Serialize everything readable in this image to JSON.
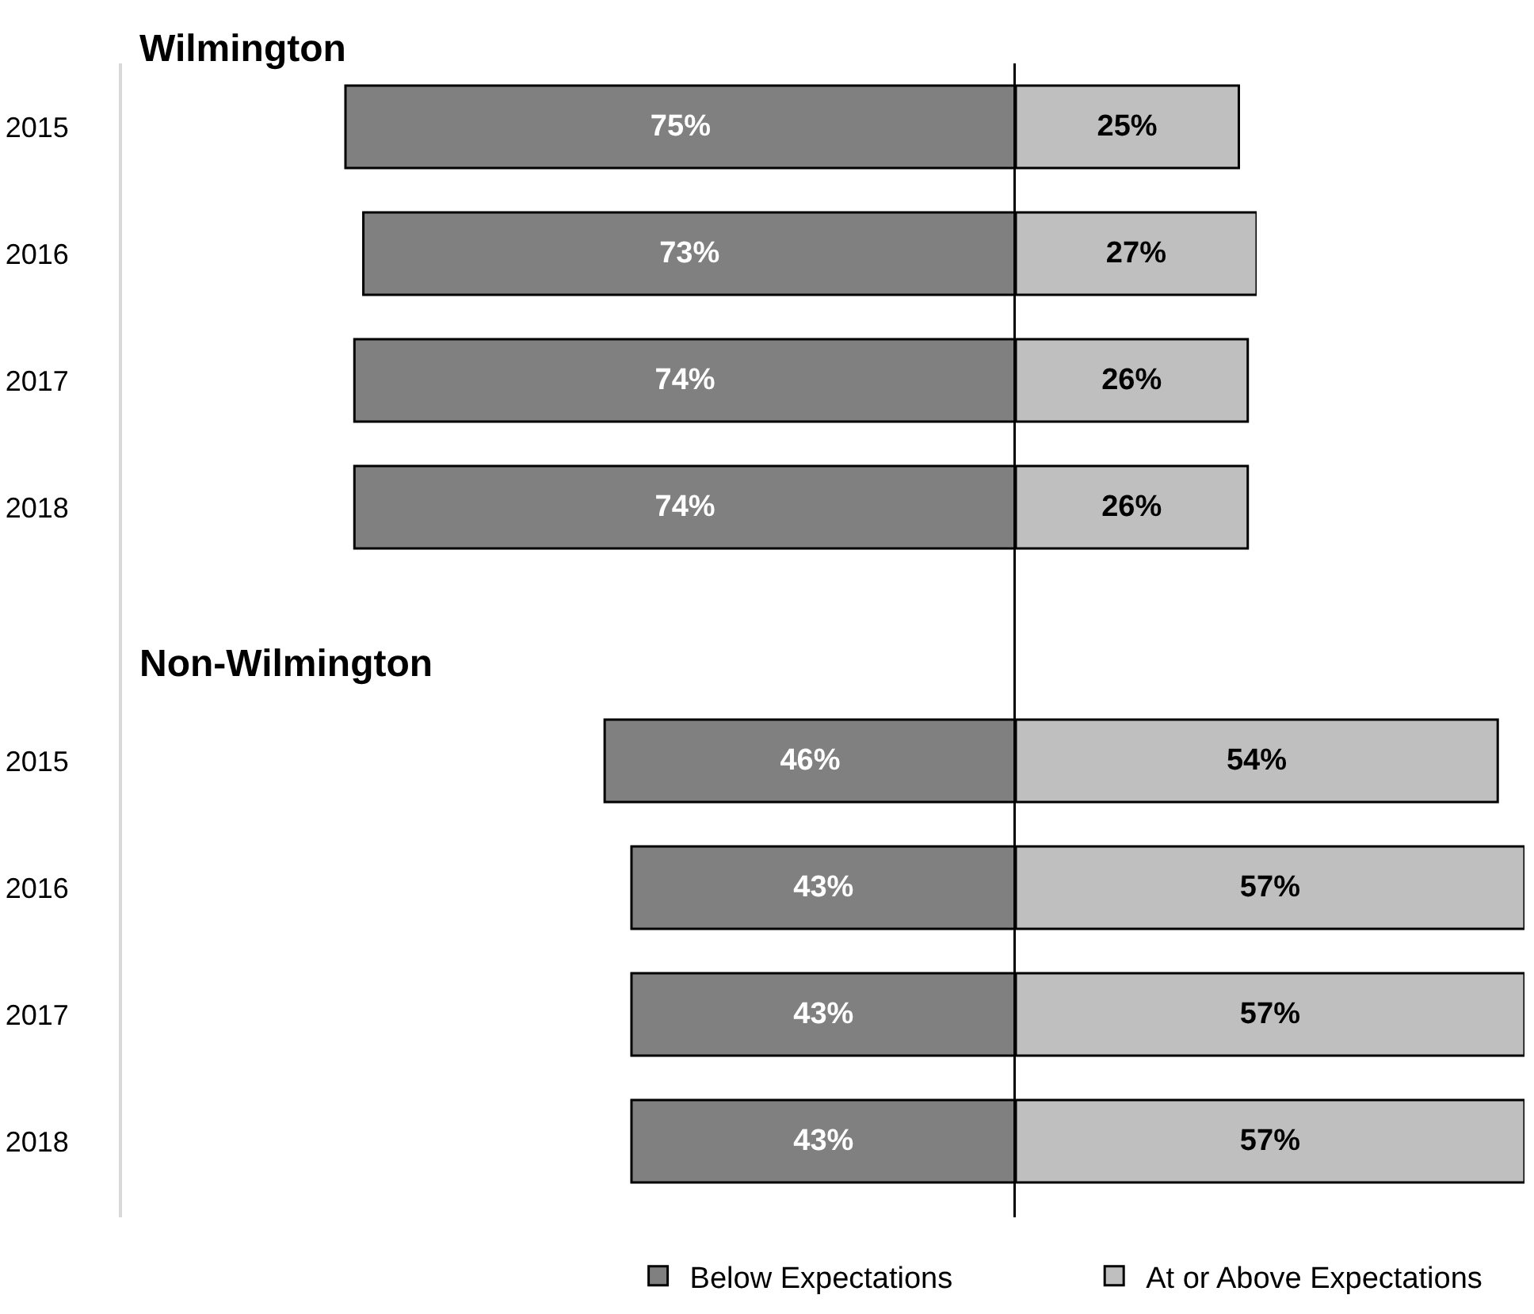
{
  "chart_data": [
    {
      "type": "bar",
      "orientation": "horizontal",
      "title": "Wilmington",
      "categories": [
        "2015",
        "2016",
        "2017",
        "2018"
      ],
      "series": [
        {
          "color": "#808080",
          "values": [
            75,
            73,
            74,
            74
          ],
          "value_labels": [
            "75%",
            "73%",
            "74%",
            "74%"
          ]
        }
      ],
      "xlim": [
        100,
        0
      ],
      "tick_labels": "y",
      "ref_lines": [
        {
          "axis": "x",
          "value": 0,
          "color": "#000000"
        }
      ]
    },
    {
      "type": "bar",
      "orientation": "horizontal",
      "categories": [
        "2015",
        "2016",
        "2017",
        "2018"
      ],
      "series": [
        {
          "color": "#bfbfbf",
          "values": [
            25,
            27,
            26,
            26
          ],
          "value_labels": [
            "25%",
            "27%",
            "26%",
            "26%"
          ]
        }
      ],
      "tick_labels": false
    },
    {
      "type": "bar",
      "orientation": "horizontal",
      "title": "Non-Wilmington",
      "categories": [
        "2015",
        "2016",
        "2017",
        "2018"
      ],
      "series": [
        {
          "name": "Below Expectations",
          "color": "#808080",
          "values": [
            46,
            43,
            43,
            43
          ],
          "value_labels": [
            "46%",
            "43%",
            "43%",
            "43%"
          ]
        }
      ],
      "xlim": [
        100,
        0
      ],
      "tick_labels": "y",
      "legend": "bottom right",
      "ref_lines": [
        {
          "axis": "x",
          "value": 0,
          "color": "#000000"
        }
      ]
    },
    {
      "type": "bar",
      "orientation": "horizontal",
      "categories": [
        "2015",
        "2016",
        "2017",
        "2018"
      ],
      "series": [
        {
          "name": "At or Above Expectations",
          "color": "#bfbfbf",
          "values": [
            54,
            57,
            57,
            57
          ],
          "value_labels": [
            "54%",
            "57%",
            "57%",
            "57%"
          ]
        }
      ],
      "tick_labels": false,
      "legend": "bottom"
    }
  ]
}
